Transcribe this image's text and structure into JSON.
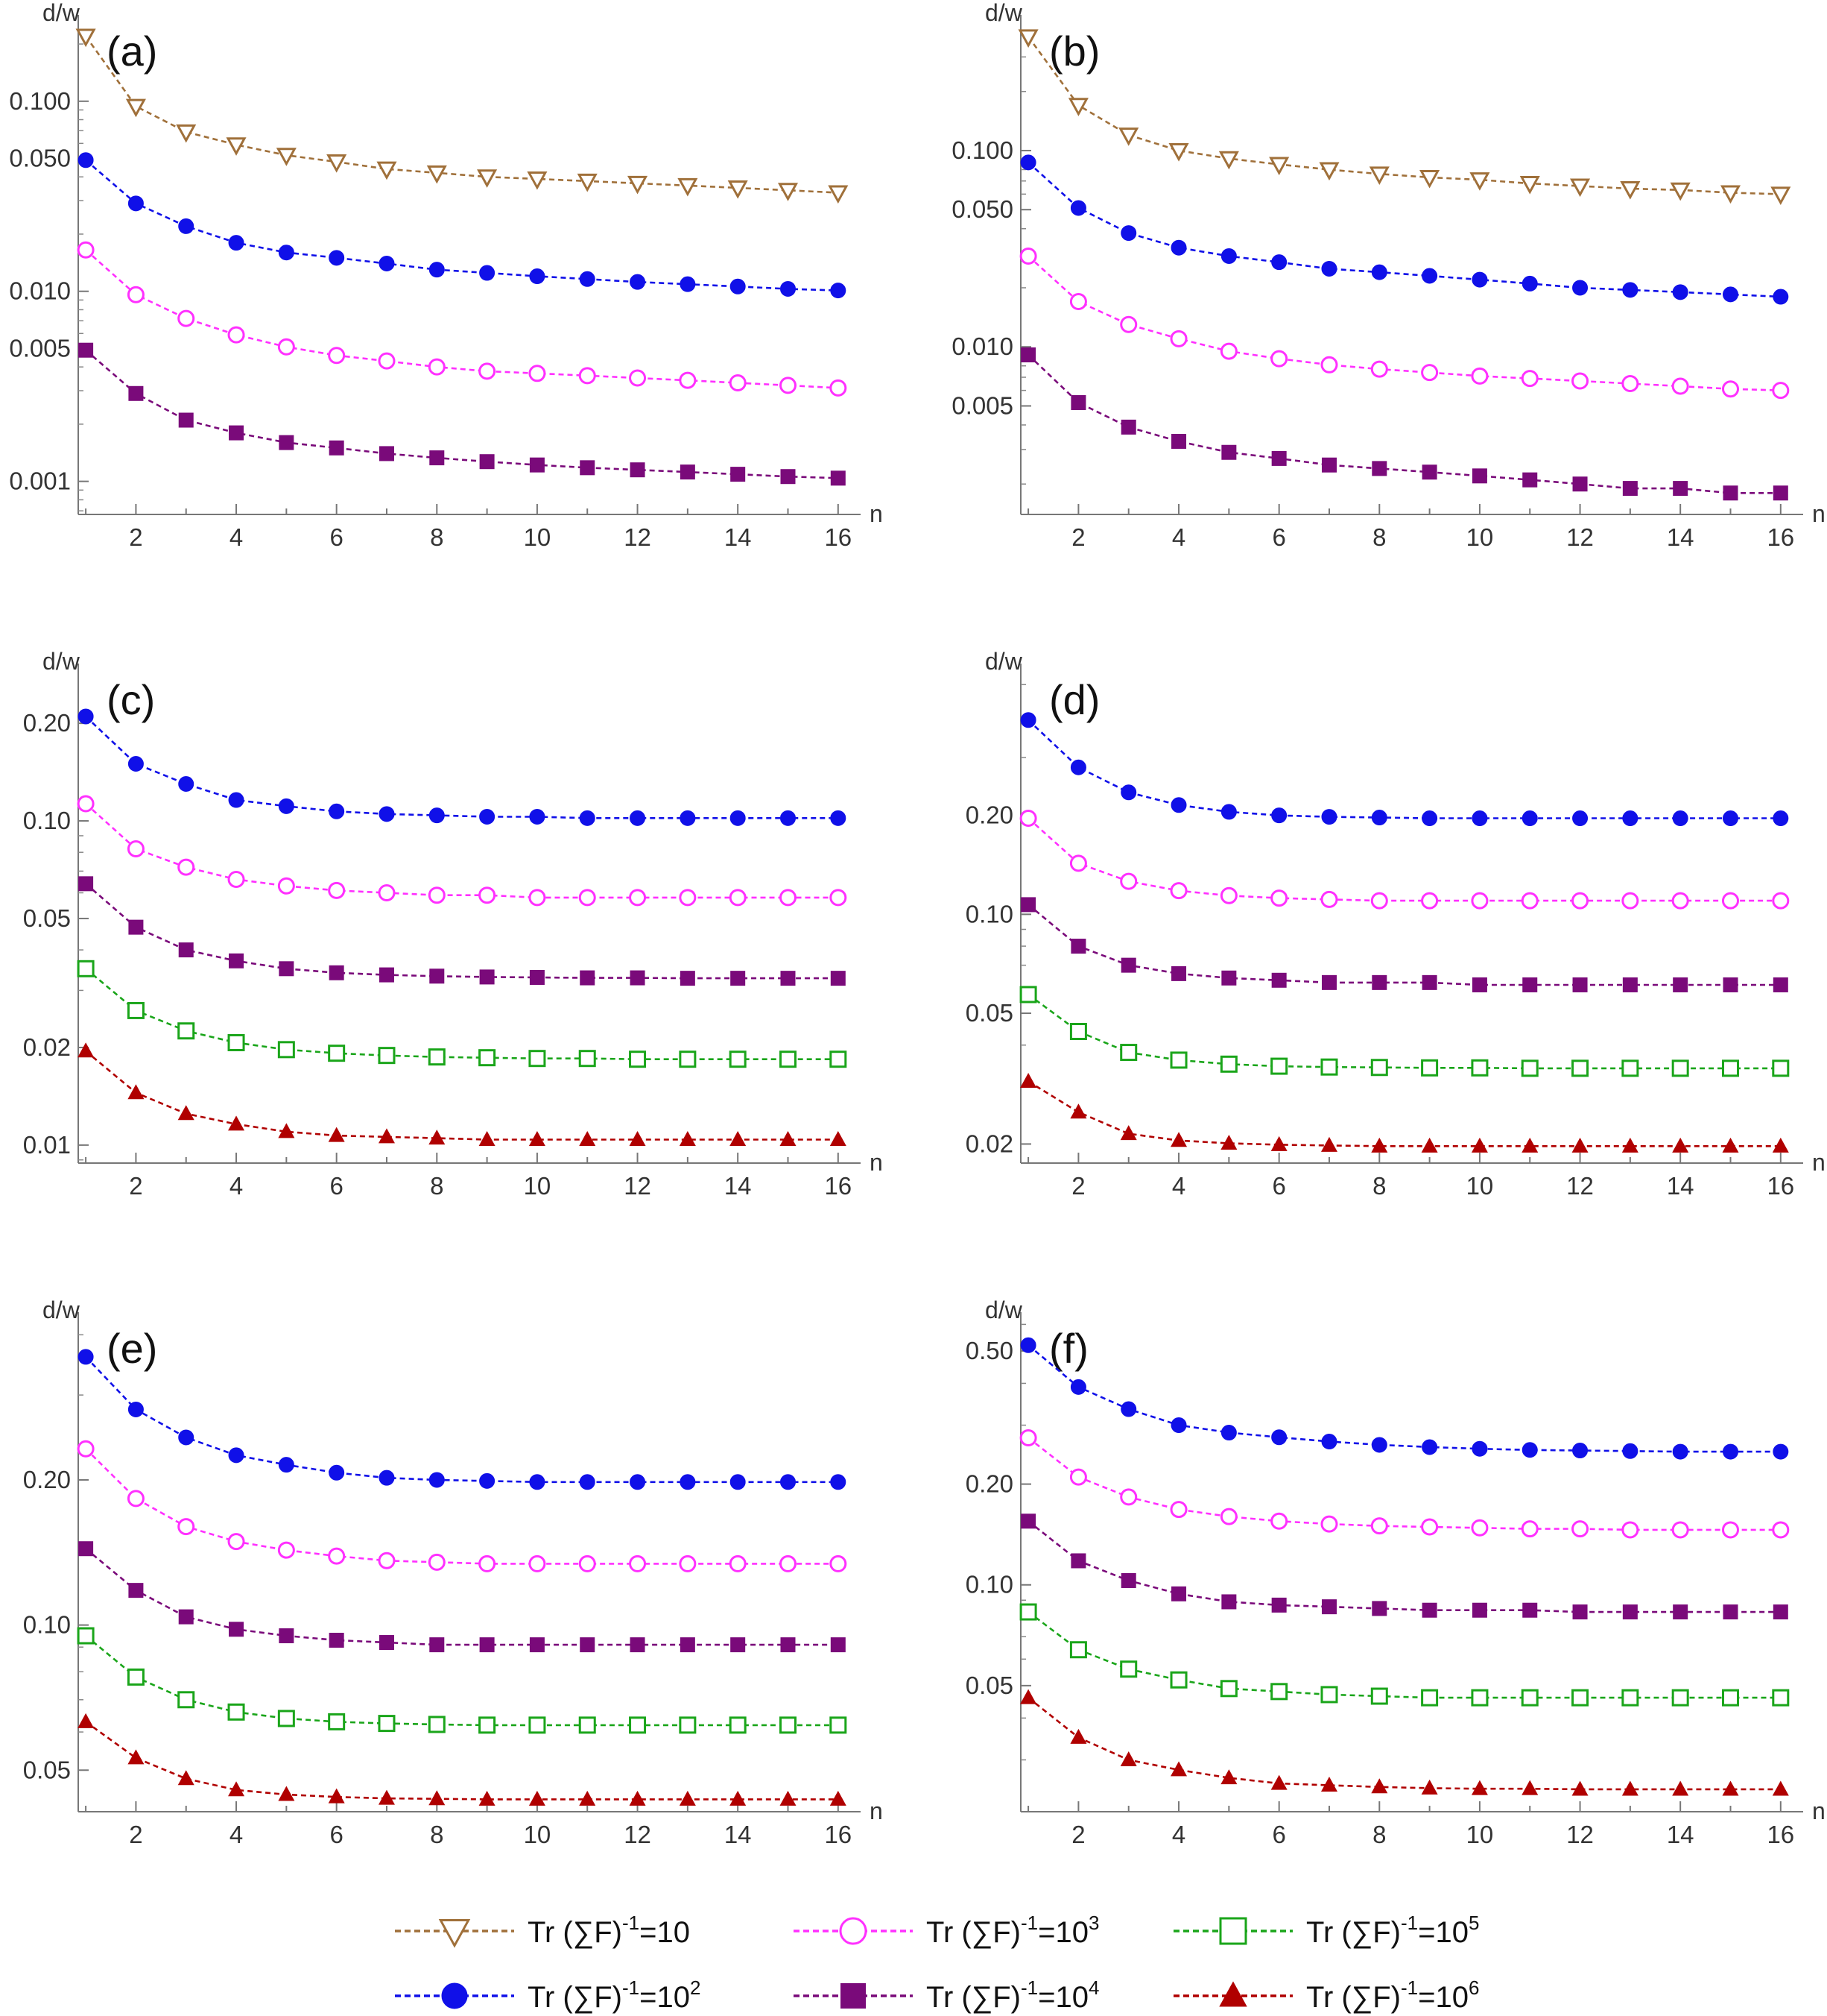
{
  "legend": {
    "items": [
      {
        "series": "Tr (∑F)⁻¹=10",
        "prefix": "Tr (∑F)",
        "sup1": "-1",
        "mid": "=10",
        "sup2": "",
        "color": "#a0703a",
        "marker": "triangle-down-open"
      },
      {
        "series": "Tr (∑F)⁻¹=10²",
        "prefix": "Tr (∑F)",
        "sup1": "-1",
        "mid": "=10",
        "sup2": "2",
        "color": "#1010e8",
        "marker": "circle-filled"
      },
      {
        "series": "Tr (∑F)⁻¹=10³",
        "prefix": "Tr (∑F)",
        "sup1": "-1",
        "mid": "=10",
        "sup2": "3",
        "color": "#ff30ff",
        "marker": "circle-open"
      },
      {
        "series": "Tr (∑F)⁻¹=10⁴",
        "prefix": "Tr (∑F)",
        "sup1": "-1",
        "mid": "=10",
        "sup2": "4",
        "color": "#7a0a7a",
        "marker": "square-filled"
      },
      {
        "series": "Tr (∑F)⁻¹=10⁵",
        "prefix": "Tr (∑F)",
        "sup1": "-1",
        "mid": "=10",
        "sup2": "5",
        "color": "#1aa51a",
        "marker": "square-open"
      },
      {
        "series": "Tr (∑F)⁻¹=10⁶",
        "prefix": "Tr (∑F)",
        "sup1": "-1",
        "mid": "=10",
        "sup2": "6",
        "color": "#b00000",
        "marker": "triangle-up-filled"
      }
    ]
  },
  "chart_data": [
    {
      "panel": "(a)",
      "type": "line",
      "scale": "log-y",
      "xlabel": "n",
      "ylabel": "d/w",
      "x": [
        1,
        2,
        3,
        4,
        5,
        6,
        7,
        8,
        9,
        10,
        11,
        12,
        13,
        14,
        15,
        16
      ],
      "xlim": [
        0.85,
        16.3
      ],
      "ylim": [
        0.00067,
        0.26
      ],
      "xticks": [
        2,
        4,
        6,
        8,
        10,
        12,
        14,
        16
      ],
      "yticks": [
        0.001,
        0.005,
        0.01,
        0.05,
        0.1
      ],
      "ytick_labels": [
        "0.001",
        "0.005",
        "0.010",
        "0.050",
        "0.100"
      ],
      "series": [
        {
          "name": "Tr (∑F)⁻¹=10",
          "values": [
            0.22,
            0.094,
            0.069,
            0.059,
            0.052,
            0.048,
            0.044,
            0.042,
            0.04,
            0.039,
            0.038,
            0.037,
            0.036,
            0.035,
            0.034,
            0.033
          ]
        },
        {
          "name": "Tr (∑F)⁻¹=10²",
          "values": [
            0.049,
            0.029,
            0.022,
            0.018,
            0.016,
            0.015,
            0.014,
            0.013,
            0.0125,
            0.012,
            0.0116,
            0.0112,
            0.0109,
            0.0106,
            0.0103,
            0.0101
          ]
        },
        {
          "name": "Tr (∑F)⁻¹=10³",
          "values": [
            0.0165,
            0.0096,
            0.0072,
            0.0059,
            0.0051,
            0.0046,
            0.0043,
            0.004,
            0.0038,
            0.0037,
            0.0036,
            0.0035,
            0.0034,
            0.0033,
            0.0032,
            0.0031
          ]
        },
        {
          "name": "Tr (∑F)⁻¹=10⁴",
          "values": [
            0.0049,
            0.0029,
            0.0021,
            0.0018,
            0.0016,
            0.0015,
            0.0014,
            0.00133,
            0.00127,
            0.00122,
            0.00118,
            0.00115,
            0.00112,
            0.00109,
            0.00106,
            0.00104
          ]
        }
      ]
    },
    {
      "panel": "(b)",
      "type": "line",
      "scale": "log-y",
      "xlabel": "n",
      "ylabel": "d/w",
      "x": [
        1,
        2,
        3,
        4,
        5,
        6,
        7,
        8,
        9,
        10,
        11,
        12,
        13,
        14,
        15,
        16
      ],
      "xlim": [
        0.85,
        16.3
      ],
      "ylim": [
        0.0014,
        0.45
      ],
      "xticks": [
        2,
        4,
        6,
        8,
        10,
        12,
        14,
        16
      ],
      "yticks": [
        0.005,
        0.01,
        0.05,
        0.1
      ],
      "ytick_labels": [
        "0.005",
        "0.010",
        "0.050",
        "0.100"
      ],
      "series": [
        {
          "name": "Tr (∑F)⁻¹=10",
          "values": [
            0.38,
            0.17,
            0.12,
            0.1,
            0.091,
            0.085,
            0.08,
            0.076,
            0.073,
            0.071,
            0.068,
            0.066,
            0.064,
            0.063,
            0.061,
            0.06
          ]
        },
        {
          "name": "Tr (∑F)⁻¹=10²",
          "values": [
            0.087,
            0.051,
            0.038,
            0.032,
            0.029,
            0.027,
            0.025,
            0.024,
            0.023,
            0.022,
            0.021,
            0.02,
            0.0195,
            0.019,
            0.0185,
            0.018
          ]
        },
        {
          "name": "Tr (∑F)⁻¹=10³",
          "values": [
            0.029,
            0.017,
            0.013,
            0.011,
            0.0095,
            0.0087,
            0.0081,
            0.0077,
            0.0074,
            0.0071,
            0.0069,
            0.0067,
            0.0065,
            0.0063,
            0.0061,
            0.006
          ]
        },
        {
          "name": "Tr (∑F)⁻¹=10⁴",
          "values": [
            0.0091,
            0.0052,
            0.0039,
            0.0033,
            0.0029,
            0.0027,
            0.0025,
            0.0024,
            0.0023,
            0.0022,
            0.0021,
            0.002,
            0.0019,
            0.0019,
            0.0018,
            0.0018
          ]
        }
      ]
    },
    {
      "panel": "(c)",
      "type": "line",
      "scale": "log-y",
      "xlabel": "n",
      "ylabel": "d/w",
      "x": [
        1,
        2,
        3,
        4,
        5,
        6,
        7,
        8,
        9,
        10,
        11,
        12,
        13,
        14,
        15,
        16
      ],
      "xlim": [
        0.85,
        16.3
      ],
      "ylim": [
        0.0088,
        0.29
      ],
      "xticks": [
        2,
        4,
        6,
        8,
        10,
        12,
        14,
        16
      ],
      "yticks": [
        0.01,
        0.02,
        0.05,
        0.1,
        0.2
      ],
      "ytick_labels": [
        "0.01",
        "0.02",
        "0.05",
        "0.10",
        "0.20"
      ],
      "series": [
        {
          "name": "Tr (∑F)⁻¹=10²",
          "values": [
            0.21,
            0.15,
            0.13,
            0.116,
            0.111,
            0.107,
            0.105,
            0.104,
            0.103,
            0.103,
            0.102,
            0.102,
            0.102,
            0.102,
            0.102,
            0.102
          ]
        },
        {
          "name": "Tr (∑F)⁻¹=10³",
          "values": [
            0.113,
            0.082,
            0.072,
            0.066,
            0.063,
            0.061,
            0.06,
            0.059,
            0.059,
            0.058,
            0.058,
            0.058,
            0.058,
            0.058,
            0.058,
            0.058
          ]
        },
        {
          "name": "Tr (∑F)⁻¹=10⁴",
          "values": [
            0.064,
            0.047,
            0.04,
            0.037,
            0.035,
            0.034,
            0.0335,
            0.0332,
            0.033,
            0.0329,
            0.0328,
            0.0328,
            0.0327,
            0.0327,
            0.0327,
            0.0327
          ]
        },
        {
          "name": "Tr (∑F)⁻¹=10⁵",
          "values": [
            0.035,
            0.026,
            0.0225,
            0.0207,
            0.0197,
            0.0192,
            0.0189,
            0.0187,
            0.0186,
            0.0185,
            0.0185,
            0.0184,
            0.0184,
            0.0184,
            0.0184,
            0.0184
          ]
        },
        {
          "name": "Tr (∑F)⁻¹=10⁶",
          "values": [
            0.0195,
            0.0145,
            0.0125,
            0.0116,
            0.011,
            0.0107,
            0.0106,
            0.0105,
            0.0104,
            0.0104,
            0.0104,
            0.0104,
            0.0104,
            0.0104,
            0.0104,
            0.0104
          ]
        }
      ]
    },
    {
      "panel": "(d)",
      "type": "line",
      "scale": "log-y",
      "xlabel": "n",
      "ylabel": "d/w",
      "x": [
        1,
        2,
        3,
        4,
        5,
        6,
        7,
        8,
        9,
        10,
        11,
        12,
        13,
        14,
        15,
        16
      ],
      "xlim": [
        0.85,
        16.3
      ],
      "ylim": [
        0.0175,
        0.55
      ],
      "xticks": [
        2,
        4,
        6,
        8,
        10,
        12,
        14,
        16
      ],
      "yticks": [
        0.02,
        0.05,
        0.1,
        0.2
      ],
      "ytick_labels": [
        "0.02",
        "0.05",
        "0.10",
        "0.20"
      ],
      "series": [
        {
          "name": "Tr (∑F)⁻¹=10²",
          "values": [
            0.39,
            0.28,
            0.235,
            0.215,
            0.205,
            0.2,
            0.198,
            0.197,
            0.196,
            0.196,
            0.196,
            0.196,
            0.196,
            0.196,
            0.196,
            0.196
          ]
        },
        {
          "name": "Tr (∑F)⁻¹=10³",
          "values": [
            0.196,
            0.143,
            0.126,
            0.118,
            0.114,
            0.112,
            0.111,
            0.11,
            0.11,
            0.11,
            0.11,
            0.11,
            0.11,
            0.11,
            0.11,
            0.11
          ]
        },
        {
          "name": "Tr (∑F)⁻¹=10⁴",
          "values": [
            0.107,
            0.08,
            0.07,
            0.066,
            0.064,
            0.063,
            0.062,
            0.062,
            0.062,
            0.061,
            0.061,
            0.061,
            0.061,
            0.061,
            0.061,
            0.061
          ]
        },
        {
          "name": "Tr (∑F)⁻¹=10⁵",
          "values": [
            0.057,
            0.044,
            0.038,
            0.036,
            0.035,
            0.0345,
            0.0343,
            0.0342,
            0.0341,
            0.0341,
            0.034,
            0.034,
            0.034,
            0.034,
            0.034,
            0.034
          ]
        },
        {
          "name": "Tr (∑F)⁻¹=10⁶",
          "values": [
            0.031,
            0.025,
            0.0215,
            0.0205,
            0.0201,
            0.0199,
            0.0198,
            0.0197,
            0.0197,
            0.0197,
            0.0197,
            0.0197,
            0.0197,
            0.0197,
            0.0197,
            0.0197
          ]
        }
      ]
    },
    {
      "panel": "(e)",
      "type": "line",
      "scale": "log-y",
      "xlabel": "n",
      "ylabel": "d/w",
      "x": [
        1,
        2,
        3,
        4,
        5,
        6,
        7,
        8,
        9,
        10,
        11,
        12,
        13,
        14,
        15,
        16
      ],
      "xlim": [
        0.85,
        16.3
      ],
      "ylim": [
        0.041,
        0.43
      ],
      "xticks": [
        2,
        4,
        6,
        8,
        10,
        12,
        14,
        16
      ],
      "yticks": [
        0.05,
        0.1,
        0.2
      ],
      "ytick_labels": [
        "0.05",
        "0.10",
        "0.20"
      ],
      "series": [
        {
          "name": "Tr (∑F)⁻¹=10²",
          "values": [
            0.36,
            0.28,
            0.245,
            0.225,
            0.215,
            0.207,
            0.202,
            0.2,
            0.199,
            0.198,
            0.198,
            0.198,
            0.198,
            0.198,
            0.198,
            0.198
          ]
        },
        {
          "name": "Tr (∑F)⁻¹=10³",
          "values": [
            0.232,
            0.183,
            0.16,
            0.149,
            0.143,
            0.139,
            0.136,
            0.135,
            0.134,
            0.134,
            0.134,
            0.134,
            0.134,
            0.134,
            0.134,
            0.134
          ]
        },
        {
          "name": "Tr (∑F)⁻¹=10⁴",
          "values": [
            0.144,
            0.118,
            0.104,
            0.098,
            0.095,
            0.093,
            0.092,
            0.091,
            0.091,
            0.091,
            0.091,
            0.091,
            0.091,
            0.091,
            0.091,
            0.091
          ]
        },
        {
          "name": "Tr (∑F)⁻¹=10⁵",
          "values": [
            0.095,
            0.078,
            0.07,
            0.066,
            0.064,
            0.063,
            0.0625,
            0.0622,
            0.062,
            0.062,
            0.062,
            0.062,
            0.062,
            0.062,
            0.062,
            0.062
          ]
        },
        {
          "name": "Tr (∑F)⁻¹=10⁶",
          "values": [
            0.063,
            0.053,
            0.048,
            0.0455,
            0.0445,
            0.044,
            0.0437,
            0.0436,
            0.0435,
            0.0435,
            0.0435,
            0.0435,
            0.0435,
            0.0435,
            0.0435,
            0.0435
          ]
        }
      ]
    },
    {
      "panel": "(f)",
      "type": "line",
      "scale": "log-y",
      "xlabel": "n",
      "ylabel": "d/w",
      "x": [
        1,
        2,
        3,
        4,
        5,
        6,
        7,
        8,
        9,
        10,
        11,
        12,
        13,
        14,
        15,
        16
      ],
      "xlim": [
        0.85,
        16.3
      ],
      "ylim": [
        0.021,
        0.62
      ],
      "xticks": [
        2,
        4,
        6,
        8,
        10,
        12,
        14,
        16
      ],
      "yticks": [
        0.05,
        0.1,
        0.2,
        0.5
      ],
      "ytick_labels": [
        "0.05",
        "0.10",
        "0.20",
        "0.50"
      ],
      "series": [
        {
          "name": "Tr (∑F)⁻¹=10²",
          "values": [
            0.52,
            0.39,
            0.335,
            0.3,
            0.285,
            0.276,
            0.268,
            0.262,
            0.258,
            0.255,
            0.253,
            0.252,
            0.251,
            0.25,
            0.25,
            0.25
          ]
        },
        {
          "name": "Tr (∑F)⁻¹=10³",
          "values": [
            0.275,
            0.21,
            0.183,
            0.168,
            0.16,
            0.155,
            0.152,
            0.15,
            0.149,
            0.148,
            0.147,
            0.147,
            0.146,
            0.146,
            0.146,
            0.146
          ]
        },
        {
          "name": "Tr (∑F)⁻¹=10⁴",
          "values": [
            0.155,
            0.118,
            0.103,
            0.094,
            0.089,
            0.087,
            0.086,
            0.085,
            0.084,
            0.084,
            0.084,
            0.083,
            0.083,
            0.083,
            0.083,
            0.083
          ]
        },
        {
          "name": "Tr (∑F)⁻¹=10⁵",
          "values": [
            0.083,
            0.064,
            0.056,
            0.052,
            0.049,
            0.048,
            0.047,
            0.0465,
            0.046,
            0.046,
            0.046,
            0.046,
            0.046,
            0.046,
            0.046,
            0.046
          ]
        },
        {
          "name": "Tr (∑F)⁻¹=10⁶",
          "values": [
            0.046,
            0.035,
            0.03,
            0.028,
            0.0265,
            0.0255,
            0.0252,
            0.0249,
            0.0247,
            0.0246,
            0.0246,
            0.0245,
            0.0245,
            0.0245,
            0.0245,
            0.0245
          ]
        }
      ]
    }
  ]
}
